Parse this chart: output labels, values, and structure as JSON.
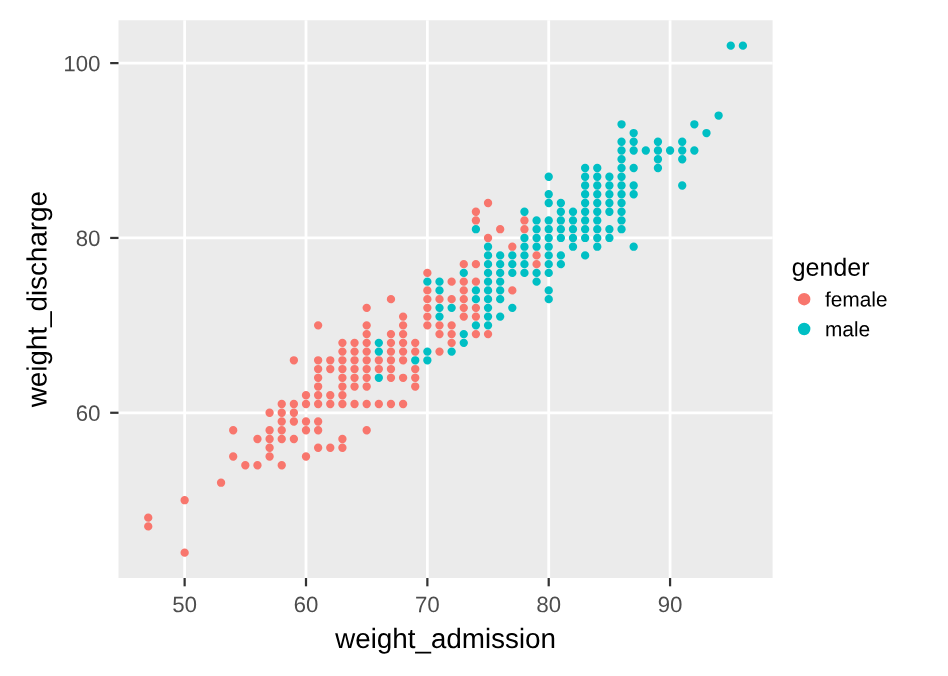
{
  "chart_data": {
    "type": "scatter",
    "xlabel": "weight_admission",
    "ylabel": "weight_discharge",
    "legend_title": "gender",
    "legend": "right",
    "grid": true,
    "marker": "circle",
    "xlim": [
      44.55,
      98.45
    ],
    "ylim": [
      41.1,
      104.9
    ],
    "xticks": [
      50,
      60,
      70,
      80,
      90
    ],
    "yticks": [
      60,
      80,
      100
    ],
    "series": [
      {
        "name": "female",
        "color": "#f8766d",
        "x": [
          47,
          47,
          50,
          50,
          53,
          54,
          54,
          55,
          56,
          56,
          57,
          57,
          57,
          57,
          57,
          58,
          58,
          58,
          58,
          58,
          58,
          59,
          59,
          59,
          59,
          59,
          60,
          60,
          60,
          60,
          60,
          61,
          61,
          61,
          61,
          61,
          61,
          61,
          61,
          61,
          61,
          62,
          62,
          62,
          62,
          62,
          63,
          63,
          63,
          63,
          63,
          63,
          63,
          63,
          63,
          63,
          64,
          64,
          64,
          64,
          64,
          64,
          64,
          65,
          65,
          65,
          65,
          65,
          65,
          65,
          65,
          65,
          65,
          65,
          66,
          66,
          66,
          67,
          67,
          67,
          67,
          67,
          67,
          67,
          67,
          68,
          68,
          68,
          68,
          68,
          68,
          68,
          68,
          69,
          69,
          69,
          69,
          69,
          70,
          70,
          70,
          70,
          70,
          70,
          71,
          71,
          71,
          71,
          72,
          72,
          72,
          72,
          72,
          73,
          73,
          73,
          73,
          73,
          73,
          74,
          74,
          74,
          74,
          74,
          74,
          74,
          75,
          75,
          75,
          76,
          77,
          77,
          78,
          78,
          79,
          79
        ],
        "values": [
          48,
          47,
          50,
          44,
          52,
          58,
          55,
          54,
          57,
          54,
          60,
          58,
          57,
          56,
          55,
          61,
          60,
          59,
          58,
          57,
          54,
          66,
          61,
          60,
          59,
          57,
          62,
          61,
          59,
          58,
          55,
          70,
          66,
          65,
          64,
          63,
          62,
          61,
          59,
          58,
          56,
          66,
          65,
          62,
          61,
          56,
          68,
          67,
          66,
          65,
          64,
          63,
          62,
          61,
          57,
          56,
          68,
          67,
          66,
          65,
          64,
          63,
          61,
          72,
          70,
          69,
          68,
          67,
          66,
          65,
          64,
          63,
          61,
          58,
          66,
          65,
          61,
          73,
          69,
          68,
          67,
          66,
          65,
          64,
          61,
          71,
          70,
          69,
          68,
          67,
          66,
          64,
          61,
          68,
          67,
          65,
          64,
          63,
          76,
          74,
          73,
          72,
          71,
          70,
          73,
          70,
          69,
          67,
          75,
          73,
          70,
          69,
          68,
          77,
          75,
          74,
          73,
          72,
          71,
          83,
          82,
          77,
          75,
          72,
          71,
          69,
          84,
          80,
          69,
          81,
          79,
          74,
          82,
          81,
          78,
          77
        ]
      },
      {
        "name": "male",
        "color": "#00bfc4",
        "x": [
          66,
          66,
          66,
          69,
          70,
          70,
          70,
          71,
          71,
          71,
          71,
          72,
          72,
          73,
          73,
          73,
          74,
          74,
          74,
          74,
          75,
          75,
          75,
          75,
          75,
          75,
          75,
          75,
          75,
          75,
          76,
          76,
          76,
          76,
          76,
          76,
          76,
          77,
          77,
          77,
          77,
          78,
          78,
          78,
          78,
          78,
          78,
          79,
          79,
          79,
          79,
          79,
          79,
          80,
          80,
          80,
          80,
          80,
          80,
          80,
          80,
          80,
          80,
          80,
          80,
          81,
          81,
          81,
          81,
          81,
          81,
          81,
          82,
          82,
          82,
          82,
          82,
          83,
          83,
          83,
          83,
          83,
          83,
          83,
          83,
          83,
          83,
          84,
          84,
          84,
          84,
          84,
          84,
          84,
          84,
          84,
          84,
          85,
          85,
          85,
          85,
          85,
          85,
          85,
          86,
          86,
          86,
          86,
          86,
          86,
          86,
          86,
          86,
          86,
          86,
          86,
          87,
          87,
          87,
          87,
          87,
          87,
          87,
          88,
          89,
          89,
          89,
          89,
          90,
          91,
          91,
          91,
          91,
          92,
          92,
          93,
          94,
          95,
          96
        ],
        "values": [
          68,
          67,
          64,
          66,
          75,
          67,
          66,
          75,
          74,
          72,
          71,
          72,
          67,
          76,
          69,
          68,
          81,
          74,
          73,
          70,
          79,
          78,
          77,
          76,
          75,
          74,
          73,
          72,
          71,
          70,
          78,
          77,
          76,
          75,
          74,
          73,
          71,
          78,
          77,
          76,
          72,
          83,
          80,
          79,
          78,
          77,
          76,
          82,
          81,
          80,
          79,
          76,
          75,
          87,
          85,
          84,
          82,
          81,
          80,
          79,
          78,
          77,
          76,
          74,
          73,
          84,
          83,
          82,
          81,
          80,
          78,
          77,
          83,
          82,
          81,
          80,
          79,
          88,
          87,
          86,
          85,
          84,
          83,
          82,
          81,
          80,
          78,
          88,
          87,
          86,
          85,
          84,
          83,
          82,
          81,
          80,
          79,
          87,
          86,
          85,
          84,
          83,
          81,
          80,
          93,
          91,
          90,
          89,
          88,
          87,
          86,
          85,
          84,
          83,
          82,
          81,
          92,
          91,
          90,
          88,
          86,
          85,
          79,
          90,
          91,
          90,
          89,
          88,
          90,
          91,
          90,
          89,
          86,
          93,
          90,
          92,
          94,
          102,
          102
        ]
      }
    ]
  }
}
